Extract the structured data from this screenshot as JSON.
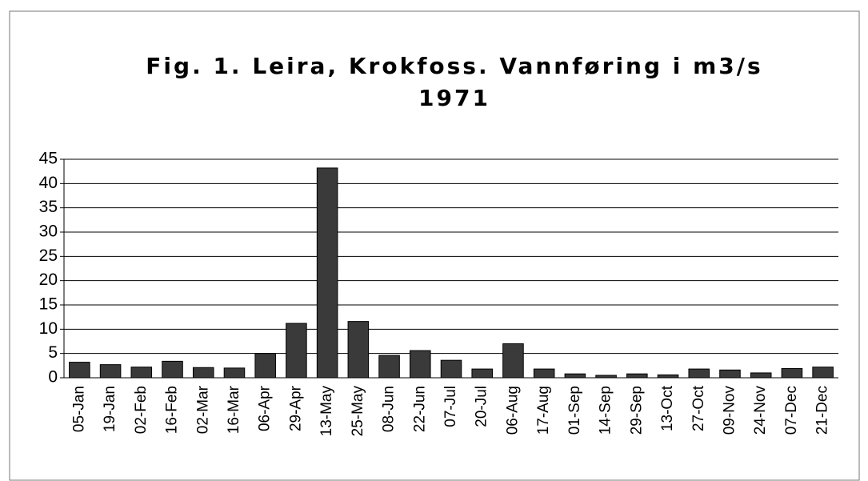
{
  "chart_data": {
    "type": "bar",
    "title": "Fig. 1. Leira, Krokfoss. Vannføring i m3/s",
    "subtitle": "1971",
    "categories": [
      "05-Jan",
      "19-Jan",
      "02-Feb",
      "16-Feb",
      "02-Mar",
      "16-Mar",
      "06-Apr",
      "29-Apr",
      "13-May",
      "25-May",
      "08-Jun",
      "22-Jun",
      "07-Jul",
      "20-Jul",
      "06-Aug",
      "17-Aug",
      "01-Sep",
      "14-Sep",
      "29-Sep",
      "13-Oct",
      "27-Oct",
      "09-Nov",
      "24-Nov",
      "07-Dec",
      "21-Dec"
    ],
    "values": [
      3.2,
      2.7,
      2.2,
      3.4,
      2.1,
      2.0,
      5.0,
      11.2,
      43.2,
      11.6,
      4.6,
      5.6,
      3.6,
      1.8,
      7.0,
      1.8,
      0.8,
      0.5,
      0.8,
      0.6,
      1.8,
      1.6,
      1.0,
      1.9,
      2.2
    ],
    "color": "#3a3a3a",
    "ylim": [
      0,
      45
    ],
    "yticks": [
      0,
      5,
      10,
      15,
      20,
      25,
      30,
      35,
      40,
      45
    ],
    "grid": true
  }
}
